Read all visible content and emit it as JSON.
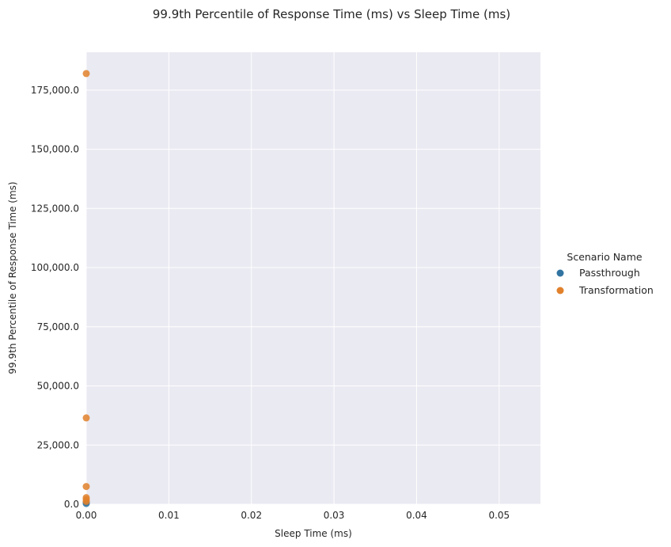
{
  "chart_data": {
    "type": "scatter",
    "title": "99.9th Percentile of Response Time (ms) vs Sleep Time (ms)",
    "xlabel": "Sleep Time (ms)",
    "ylabel": "99.9th Percentile of Response Time (ms)",
    "xlim": [
      0,
      0.055
    ],
    "ylim": [
      0,
      191000
    ],
    "x_ticks": [
      0,
      0.01,
      0.02,
      0.03,
      0.04,
      0.05
    ],
    "x_tick_labels": [
      "0.00",
      "0.01",
      "0.02",
      "0.03",
      "0.04",
      "0.05"
    ],
    "y_ticks": [
      0,
      25000,
      50000,
      75000,
      100000,
      125000,
      150000,
      175000
    ],
    "y_tick_labels": [
      "0.0",
      "25,000.0",
      "50,000.0",
      "75,000.0",
      "100,000.0",
      "125,000.0",
      "150,000.0",
      "175,000.0"
    ],
    "grid": true,
    "legend": {
      "title": "Scenario Name",
      "position": "right"
    },
    "series": [
      {
        "name": "Passthrough",
        "color": "#3274a1",
        "points": [
          {
            "x": 0,
            "y": 300
          },
          {
            "x": 0,
            "y": 800
          }
        ]
      },
      {
        "name": "Transformation",
        "color": "#e1812c",
        "points": [
          {
            "x": 0,
            "y": 182000
          },
          {
            "x": 0,
            "y": 36500
          },
          {
            "x": 0,
            "y": 7500
          },
          {
            "x": 0,
            "y": 2800
          },
          {
            "x": 0,
            "y": 2000
          },
          {
            "x": 0,
            "y": 1200
          }
        ]
      }
    ]
  },
  "colors": {
    "plot_background": "#eaeaf2",
    "grid": "#ffffff",
    "text": "#262626"
  }
}
